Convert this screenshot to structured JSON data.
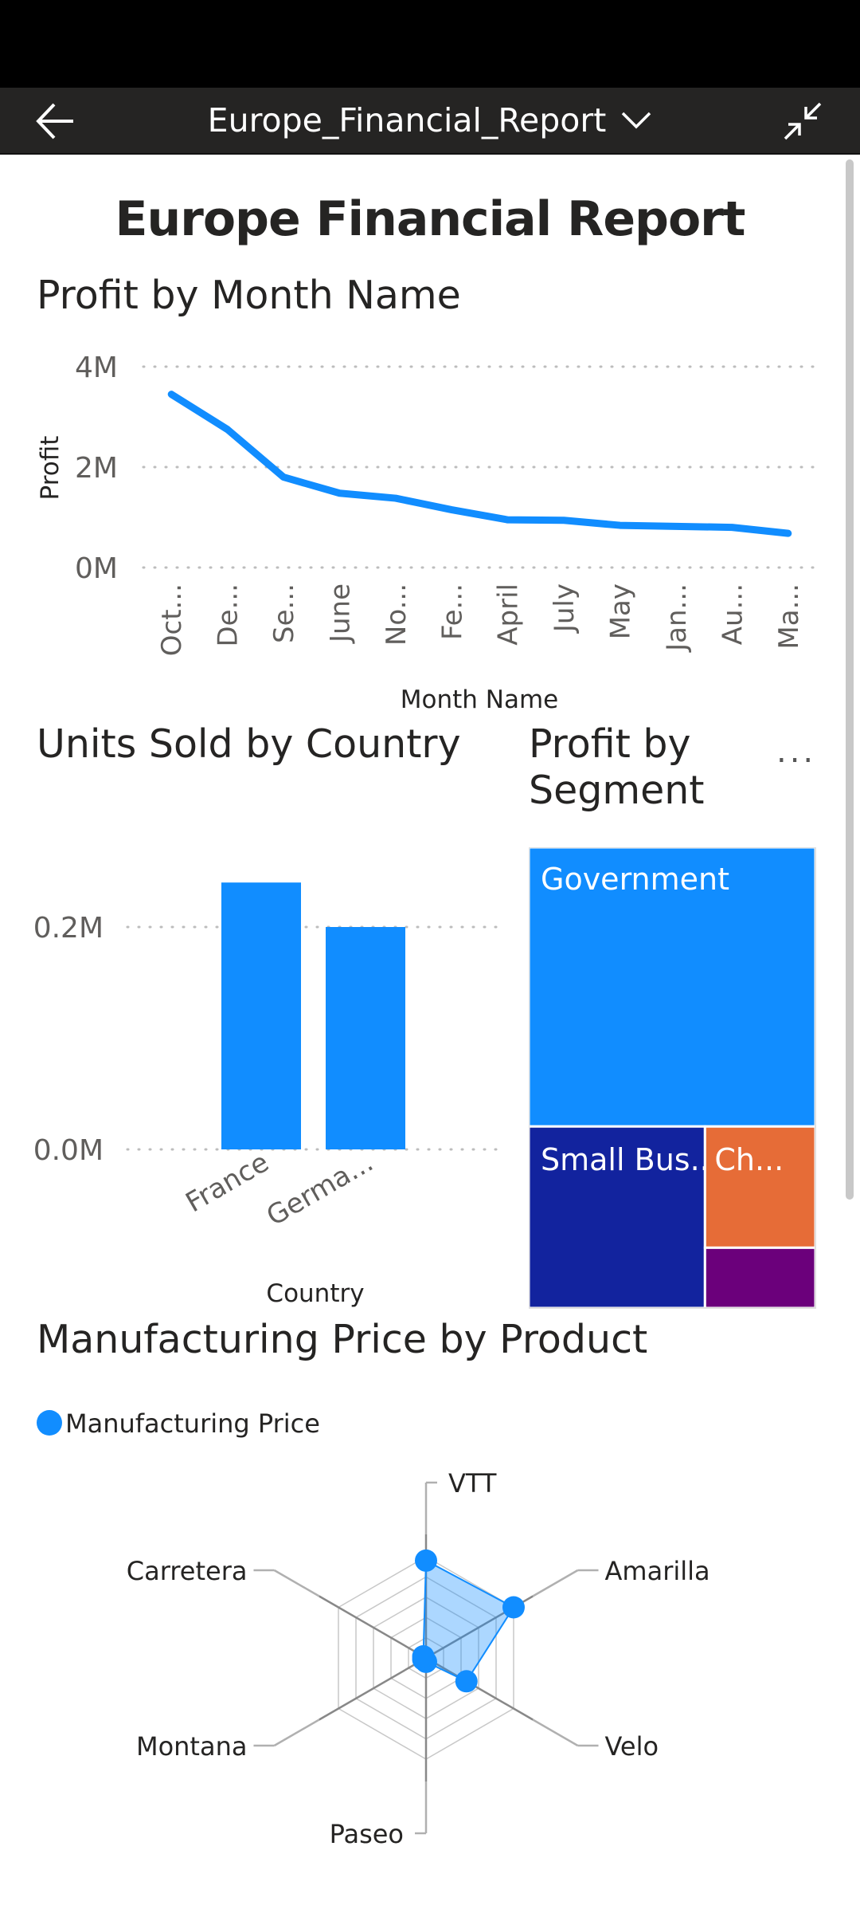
{
  "header": {
    "report_name": "Europe_Financial_Report",
    "back_icon": "arrow-left-icon",
    "dropdown_icon": "chevron-down-icon",
    "collapse_icon": "collapse-icon"
  },
  "report_title": "Europe Financial Report",
  "more_options": "...",
  "colors": {
    "accent": "#118DFF",
    "header_bg": "#252423",
    "navy": "#12239E",
    "orange": "#E66C37",
    "purple": "#6B007B"
  },
  "chart_data": [
    {
      "type": "line",
      "title": "Profit by Month Name",
      "xlabel": "Month Name",
      "ylabel": "Profit",
      "x_tick_labels": [
        "Oct...",
        "De...",
        "Se...",
        "June",
        "No...",
        "Fe...",
        "April",
        "July",
        "May",
        "Jan...",
        "Au...",
        "Ma..."
      ],
      "y_tick_labels": [
        "4M",
        "2M",
        "0M"
      ],
      "ylim": [
        0,
        4000000
      ],
      "values": [
        3450000,
        2750000,
        1800000,
        1480000,
        1380000,
        1150000,
        950000,
        940000,
        840000,
        820000,
        800000,
        680000
      ],
      "grid": true
    },
    {
      "type": "bar",
      "title": "Units Sold by Country",
      "xlabel": "Country",
      "ylabel": "",
      "categories": [
        "France",
        "Germa..."
      ],
      "values": [
        240000,
        200000
      ],
      "y_tick_labels": [
        "0.2M",
        "0.0M"
      ],
      "ylim": [
        0,
        280000
      ],
      "grid": true
    },
    {
      "type": "treemap",
      "title": "Profit by Segment",
      "items": [
        {
          "label": "Government",
          "value": 1058000
        },
        {
          "label": "Small Bus...",
          "value": 423000
        },
        {
          "label": "Ch...",
          "value": 177000
        },
        {
          "label": "",
          "value": 88000
        }
      ]
    },
    {
      "type": "radar",
      "title": "Manufacturing Price by Product",
      "legend": [
        "Manufacturing Price"
      ],
      "categories": [
        "VTT",
        "Amarilla",
        "Velo",
        "Paseo",
        "Montana",
        "Carretera"
      ],
      "values": [
        250,
        260,
        120,
        10,
        5,
        5
      ],
      "rmax": 260,
      "rings": 5
    }
  ]
}
